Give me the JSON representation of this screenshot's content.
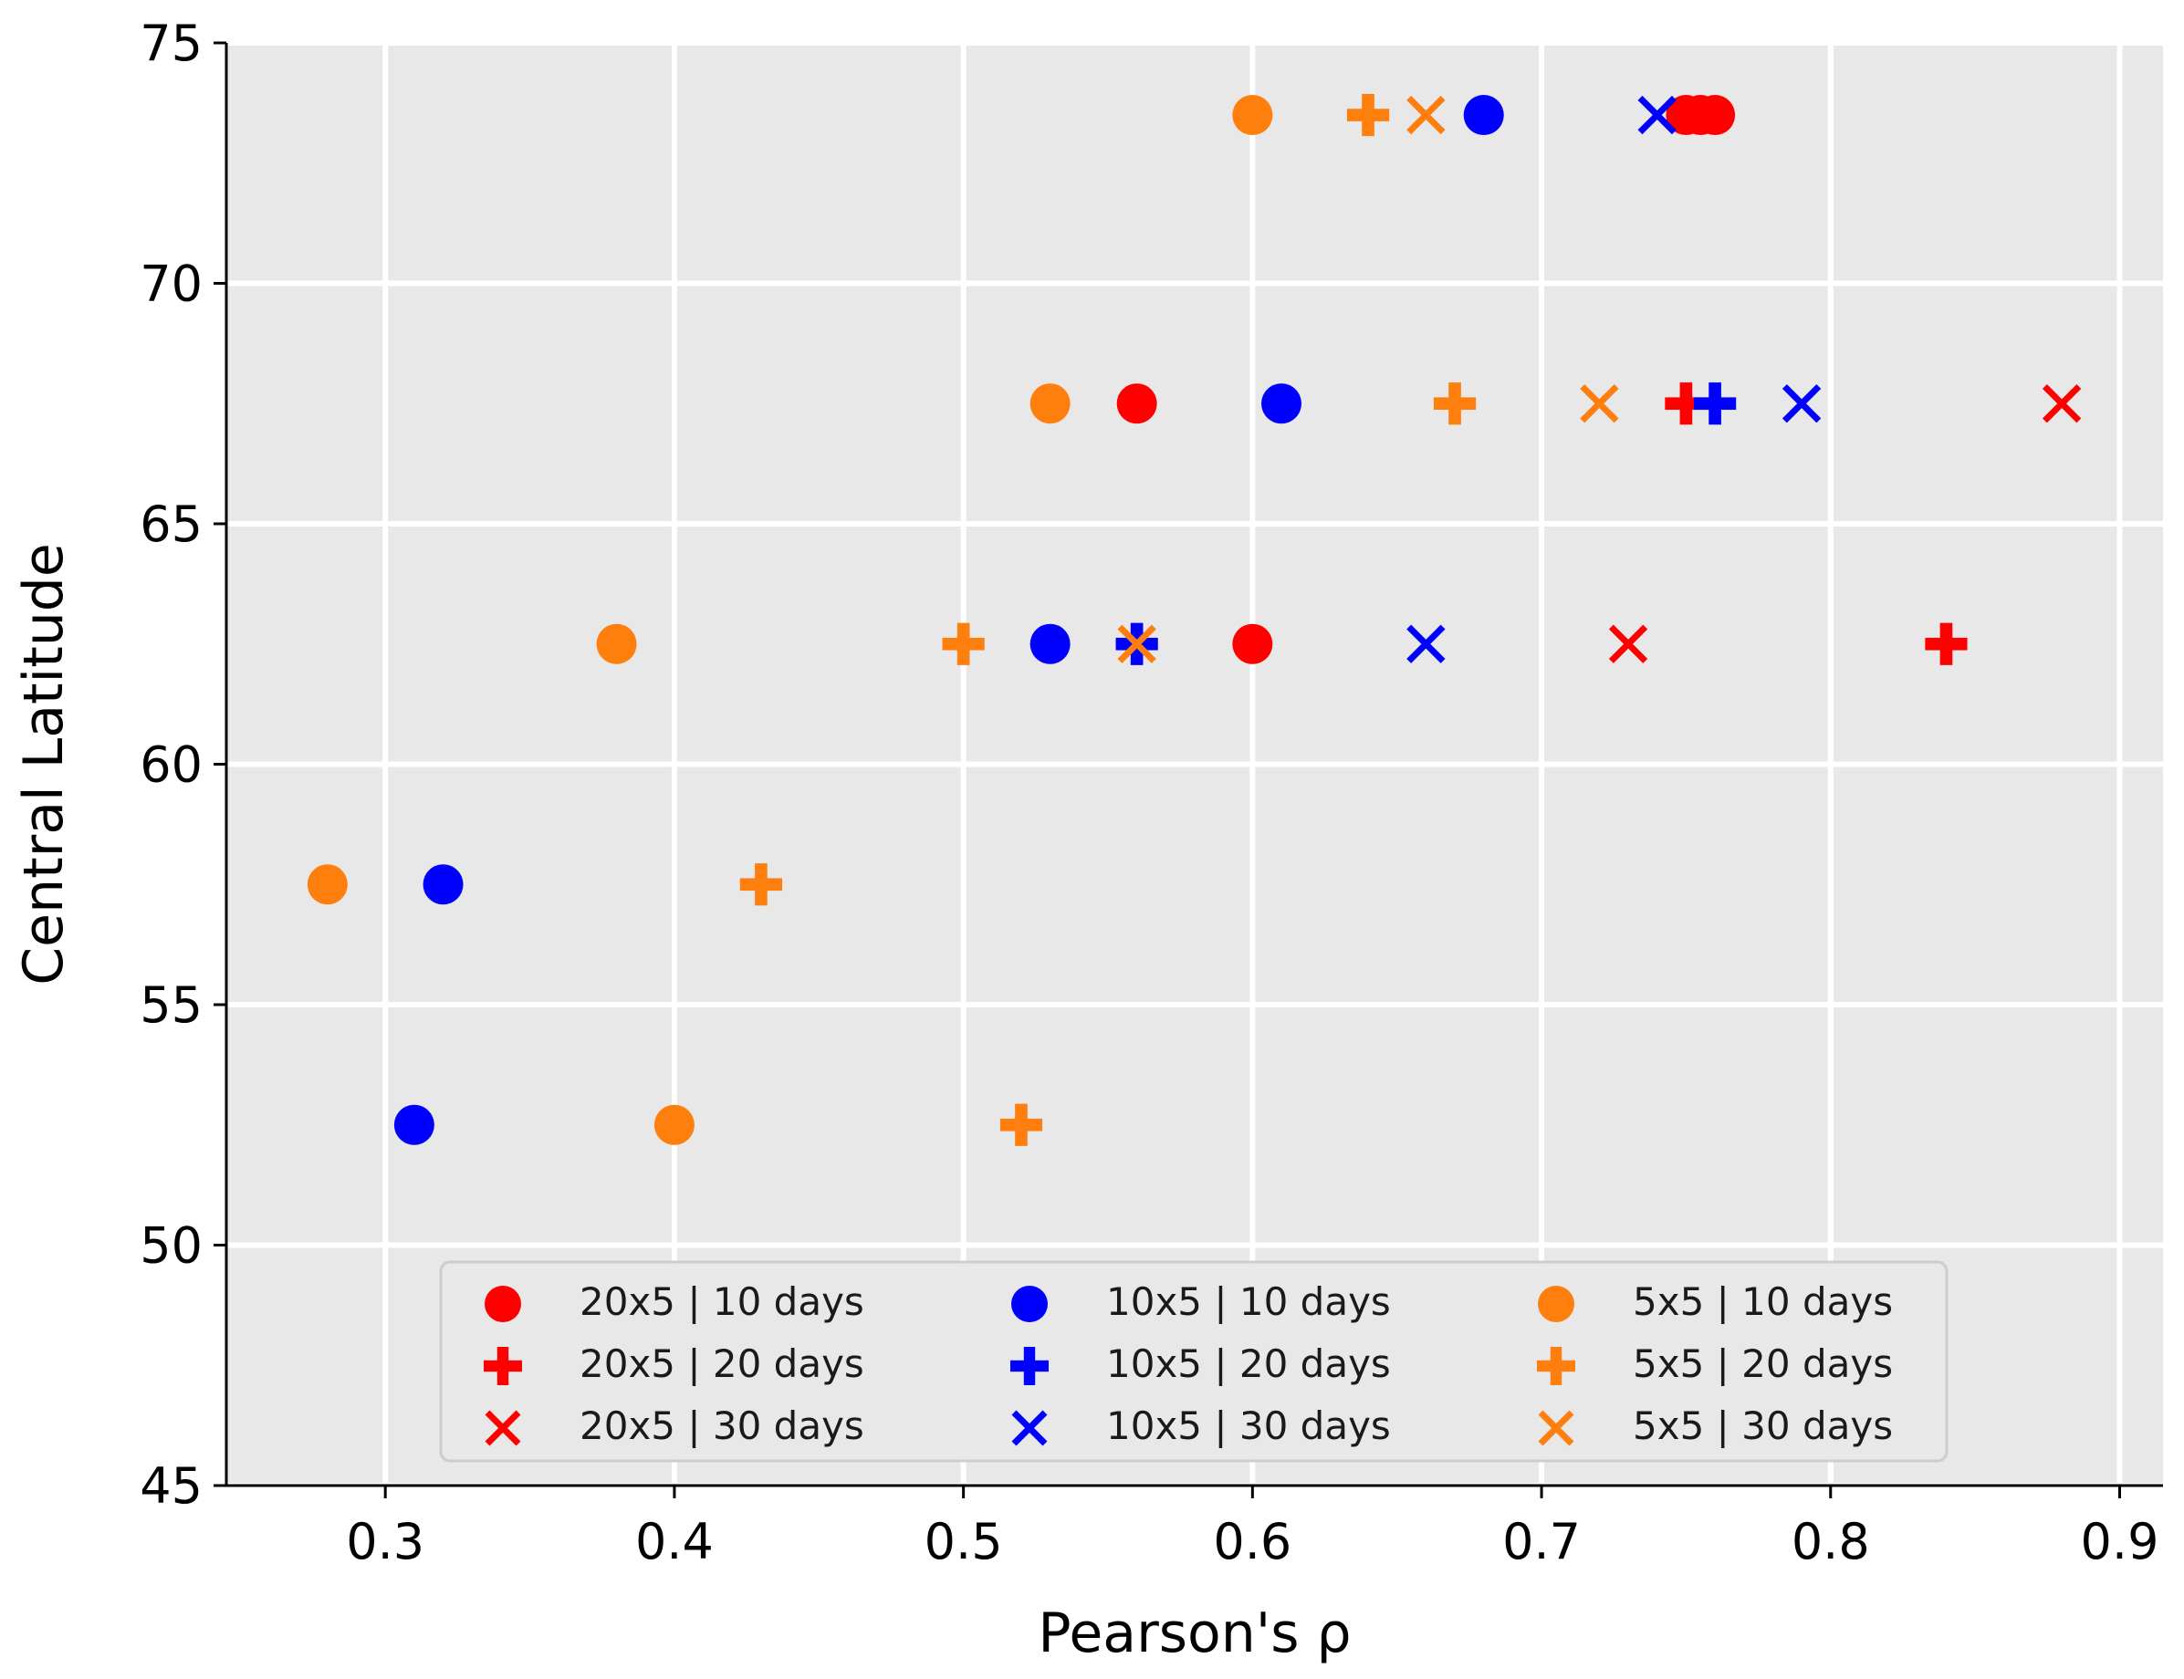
{
  "chart_data": {
    "type": "scatter",
    "title": "",
    "xlabel": "Pearson's ρ",
    "ylabel": "Central Latitude",
    "xlim": [
      0.245,
      0.915
    ],
    "ylim": [
      45,
      75
    ],
    "xticks": [
      0.3,
      0.4,
      0.5,
      0.6,
      0.7,
      0.8,
      0.9
    ],
    "xtick_labels": [
      "0.3",
      "0.4",
      "0.5",
      "0.6",
      "0.7",
      "0.8",
      "0.9"
    ],
    "yticks": [
      45,
      50,
      55,
      60,
      65,
      70,
      75
    ],
    "ytick_labels": [
      "45",
      "50",
      "55",
      "60",
      "65",
      "70",
      "75"
    ],
    "grid": true,
    "legend_position": "lower-center",
    "colors": {
      "20x5": "#ff0000",
      "10x5": "#0000ff",
      "5x5": "#ff7f0e",
      "background": "#e8e8e8",
      "grid": "#ffffff"
    },
    "series": [
      {
        "name": "20x5 | 10 days",
        "color": "#ff0000",
        "marker": "circle",
        "points": [
          {
            "x": 0.75,
            "y": 73.5
          },
          {
            "x": 0.755,
            "y": 73.5
          },
          {
            "x": 0.76,
            "y": 73.5
          },
          {
            "x": 0.56,
            "y": 67.5
          },
          {
            "x": 0.6,
            "y": 62.5
          }
        ]
      },
      {
        "name": "20x5 | 20 days",
        "color": "#ff0000",
        "marker": "plus",
        "points": [
          {
            "x": 0.75,
            "y": 67.5
          },
          {
            "x": 0.84,
            "y": 62.5
          }
        ]
      },
      {
        "name": "20x5 | 30 days",
        "color": "#ff0000",
        "marker": "x",
        "points": [
          {
            "x": 0.88,
            "y": 67.5
          },
          {
            "x": 0.73,
            "y": 62.5
          }
        ]
      },
      {
        "name": "10x5 | 10 days",
        "color": "#0000ff",
        "marker": "circle",
        "points": [
          {
            "x": 0.68,
            "y": 73.5
          },
          {
            "x": 0.61,
            "y": 67.5
          },
          {
            "x": 0.53,
            "y": 62.5
          },
          {
            "x": 0.32,
            "y": 57.5
          },
          {
            "x": 0.31,
            "y": 52.5
          }
        ]
      },
      {
        "name": "10x5 | 20 days",
        "color": "#0000ff",
        "marker": "plus",
        "points": [
          {
            "x": 0.76,
            "y": 67.5
          },
          {
            "x": 0.56,
            "y": 62.5
          }
        ]
      },
      {
        "name": "10x5 | 30 days",
        "color": "#0000ff",
        "marker": "x",
        "points": [
          {
            "x": 0.74,
            "y": 73.5
          },
          {
            "x": 0.79,
            "y": 67.5
          },
          {
            "x": 0.66,
            "y": 62.5
          }
        ]
      },
      {
        "name": "5x5 | 10 days",
        "color": "#ff7f0e",
        "marker": "circle",
        "points": [
          {
            "x": 0.6,
            "y": 73.5
          },
          {
            "x": 0.53,
            "y": 67.5
          },
          {
            "x": 0.38,
            "y": 62.5
          },
          {
            "x": 0.28,
            "y": 57.5
          },
          {
            "x": 0.4,
            "y": 52.5
          }
        ]
      },
      {
        "name": "5x5 | 20 days",
        "color": "#ff7f0e",
        "marker": "plus",
        "points": [
          {
            "x": 0.64,
            "y": 73.5
          },
          {
            "x": 0.67,
            "y": 67.5
          },
          {
            "x": 0.5,
            "y": 62.5
          },
          {
            "x": 0.43,
            "y": 57.5
          },
          {
            "x": 0.52,
            "y": 52.5
          }
        ]
      },
      {
        "name": "5x5 | 30 days",
        "color": "#ff7f0e",
        "marker": "x",
        "points": [
          {
            "x": 0.66,
            "y": 73.5
          },
          {
            "x": 0.72,
            "y": 67.5
          },
          {
            "x": 0.56,
            "y": 62.5
          }
        ]
      }
    ],
    "legend_order": [
      [
        "20x5 | 10 days",
        "20x5 | 20 days",
        "20x5 | 30 days"
      ],
      [
        "10x5 | 10 days",
        "10x5 | 20 days",
        "10x5 | 30 days"
      ],
      [
        "5x5 | 10 days",
        "5x5 | 20 days",
        "5x5 | 30 days"
      ]
    ]
  }
}
